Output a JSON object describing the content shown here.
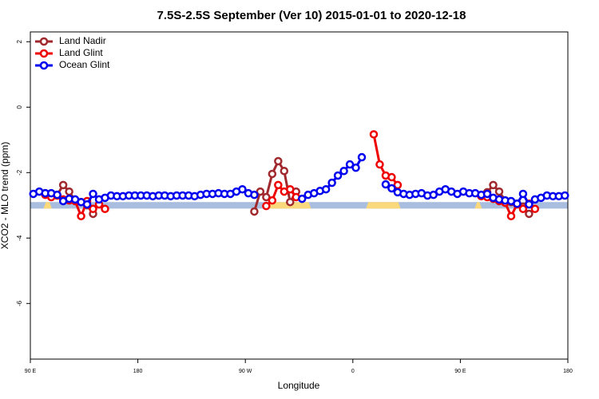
{
  "chart_data": {
    "type": "line",
    "title": "7.5S-2.5S September (Ver 10)   2015-01-01 to 2020-12-18",
    "xlabel": "Longitude",
    "ylabel": "XCO2 - MLO trend (ppm)",
    "xlim": [
      90,
      540
    ],
    "ylim": [
      -7.7,
      2.3
    ],
    "xticks": [
      {
        "value": 90,
        "label": "90 E"
      },
      {
        "value": 180,
        "label": "180"
      },
      {
        "value": 270,
        "label": "90 W"
      },
      {
        "value": 360,
        "label": "0"
      },
      {
        "value": 450,
        "label": "90 E"
      },
      {
        "value": 540,
        "label": "180"
      }
    ],
    "yticks": [
      2,
      0,
      -2,
      -4,
      -6
    ],
    "legend": "top-left",
    "band_ylim": [
      -3.1,
      -2.9
    ],
    "ocean_color": "#a9bedf",
    "land_color": "#f9d97c",
    "land_ranges": [
      [
        101,
        108
      ],
      [
        285,
        325
      ],
      [
        371,
        400
      ],
      [
        462,
        468
      ]
    ],
    "x": [
      92.5,
      97.5,
      102.5,
      107.5,
      112.5,
      117.5,
      122.5,
      127.5,
      132.5,
      137.5,
      142.5,
      147.5,
      152.5,
      157.5,
      162.5,
      167.5,
      172.5,
      177.5,
      182.5,
      187.5,
      192.5,
      197.5,
      202.5,
      207.5,
      212.5,
      217.5,
      222.5,
      227.5,
      232.5,
      237.5,
      242.5,
      247.5,
      252.5,
      257.5,
      262.5,
      267.5,
      272.5,
      277.5,
      282.5,
      287.5,
      292.5,
      297.5,
      302.5,
      307.5,
      312.5,
      317.5,
      322.5,
      327.5,
      332.5,
      337.5,
      342.5,
      347.5,
      352.5,
      357.5,
      362.5,
      367.5,
      372.5,
      377.5,
      382.5,
      387.5,
      392.5,
      397.5,
      402.5,
      407.5,
      412.5,
      417.5,
      422.5,
      427.5,
      432.5,
      437.5,
      442.5,
      447.5,
      452.5,
      457.5,
      462.5,
      467.5,
      472.5,
      477.5,
      482.5,
      487.5,
      492.5,
      497.5,
      502.5,
      507.5,
      512.5,
      517.5,
      522.5,
      527.5,
      532.5,
      537.5
    ],
    "series": [
      {
        "name": "Land Nadir",
        "color": "#a0292e",
        "values": [
          null,
          null,
          -2.63,
          -2.65,
          -2.68,
          -2.38,
          -2.58,
          -2.85,
          -2.9,
          -3.0,
          -3.26,
          null,
          null,
          null,
          null,
          null,
          null,
          null,
          null,
          null,
          null,
          null,
          null,
          null,
          null,
          null,
          null,
          null,
          null,
          null,
          null,
          null,
          null,
          null,
          null,
          null,
          null,
          -3.19,
          -2.58,
          -2.75,
          -2.04,
          -1.65,
          -1.95,
          -2.9,
          -2.58,
          null,
          null,
          null,
          null,
          null,
          null,
          null,
          null,
          null,
          null,
          null,
          null,
          null,
          null,
          null,
          null,
          null,
          null,
          null,
          null,
          null,
          null,
          null,
          null,
          null,
          null,
          null,
          null,
          null,
          null,
          null,
          -2.6,
          -2.38,
          -2.58,
          -2.85,
          -2.9,
          -2.95,
          -3.04,
          -3.26,
          null,
          null,
          null,
          null,
          null,
          null
        ]
      },
      {
        "name": "Land Glint",
        "color": "#ee0000",
        "values": [
          null,
          null,
          -2.68,
          -2.75,
          -2.7,
          -2.82,
          -2.85,
          -2.87,
          -3.33,
          -2.87,
          -3.11,
          -2.97,
          -3.11,
          null,
          null,
          null,
          null,
          null,
          null,
          null,
          null,
          null,
          null,
          null,
          null,
          null,
          null,
          null,
          null,
          null,
          null,
          null,
          null,
          null,
          null,
          null,
          null,
          null,
          null,
          -3.02,
          -2.85,
          -2.38,
          -2.58,
          -2.51,
          -2.75,
          null,
          null,
          null,
          null,
          null,
          null,
          null,
          null,
          null,
          null,
          null,
          null,
          -0.83,
          -1.75,
          -2.09,
          -2.14,
          -2.38,
          null,
          null,
          null,
          null,
          null,
          null,
          null,
          null,
          null,
          null,
          null,
          null,
          null,
          -2.72,
          -2.75,
          -2.8,
          -2.87,
          -2.92,
          -3.33,
          -2.97,
          -3.11,
          -2.95,
          -3.11,
          null,
          null,
          null,
          null,
          null
        ]
      },
      {
        "name": "Ocean Glint",
        "color": "#0000ee",
        "values": [
          -2.65,
          -2.58,
          -2.63,
          -2.63,
          -2.68,
          -2.87,
          -2.8,
          -2.82,
          -2.9,
          -2.97,
          -2.65,
          -2.82,
          -2.77,
          -2.7,
          -2.72,
          -2.72,
          -2.7,
          -2.7,
          -2.7,
          -2.7,
          -2.72,
          -2.7,
          -2.7,
          -2.72,
          -2.7,
          -2.7,
          -2.7,
          -2.72,
          -2.68,
          -2.65,
          -2.65,
          -2.63,
          -2.65,
          -2.65,
          -2.58,
          -2.51,
          -2.63,
          -2.68,
          null,
          null,
          null,
          null,
          null,
          null,
          null,
          -2.8,
          -2.68,
          -2.63,
          -2.56,
          -2.51,
          -2.31,
          -2.09,
          -1.95,
          -1.75,
          -1.85,
          -1.53,
          null,
          null,
          null,
          -2.36,
          -2.48,
          -2.6,
          -2.65,
          -2.68,
          -2.65,
          -2.63,
          -2.7,
          -2.68,
          -2.58,
          -2.51,
          -2.58,
          -2.65,
          -2.58,
          -2.63,
          -2.63,
          -2.68,
          -2.65,
          -2.77,
          -2.82,
          -2.85,
          -2.87,
          -2.95,
          -2.65,
          -2.97,
          -2.82,
          -2.77,
          -2.7,
          -2.72,
          -2.72,
          -2.7
        ]
      }
    ]
  }
}
